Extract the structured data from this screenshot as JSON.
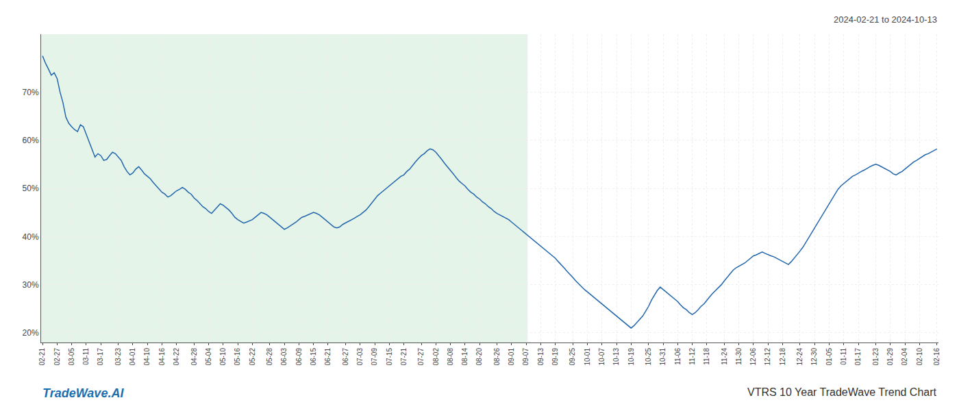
{
  "chart_data": {
    "type": "line",
    "title": "VTRS 10 Year TradeWave Trend Chart",
    "subtitle": "2024-02-21 to 2024-10-13",
    "annotations": [
      "TradeWave.AI"
    ],
    "color": "#2166ac",
    "grid": true,
    "shaded": {
      "from": 0,
      "to": 166,
      "color": "#d4edda"
    },
    "ylim": [
      0.18,
      0.82
    ],
    "yticks": [
      {
        "value": 0.2,
        "label": "20%"
      },
      {
        "value": 0.3,
        "label": "30%"
      },
      {
        "value": 0.4,
        "label": "40%"
      },
      {
        "value": 0.5,
        "label": "50%"
      },
      {
        "value": 0.6,
        "label": "60%"
      },
      {
        "value": 0.7,
        "label": "70%"
      }
    ],
    "categories": [
      "02-21",
      null,
      null,
      null,
      null,
      "02-27",
      null,
      null,
      null,
      null,
      "03-05",
      null,
      null,
      null,
      null,
      "03-11",
      null,
      null,
      null,
      null,
      "03-17",
      null,
      null,
      null,
      null,
      null,
      "03-23",
      null,
      null,
      null,
      null,
      "04-01",
      null,
      null,
      null,
      null,
      "04-10",
      null,
      null,
      null,
      null,
      "04-16",
      null,
      null,
      null,
      null,
      "04-22",
      null,
      null,
      null,
      null,
      null,
      "04-28",
      null,
      null,
      null,
      null,
      "05-04",
      null,
      null,
      null,
      null,
      "05-10",
      null,
      null,
      null,
      null,
      "05-16",
      null,
      null,
      null,
      null,
      "05-22",
      null,
      null,
      null,
      null,
      null,
      "05-28",
      null,
      null,
      null,
      null,
      "06-03",
      null,
      null,
      null,
      null,
      "06-09",
      null,
      null,
      null,
      null,
      "06-15",
      null,
      null,
      null,
      null,
      "06-21",
      null,
      null,
      null,
      null,
      null,
      "06-27",
      null,
      null,
      null,
      null,
      "07-03",
      null,
      null,
      null,
      null,
      "07-09",
      null,
      null,
      null,
      null,
      "07-15",
      null,
      null,
      null,
      null,
      "07-21",
      null,
      null,
      null,
      null,
      null,
      "07-27",
      null,
      null,
      null,
      null,
      "08-02",
      null,
      null,
      null,
      null,
      "08-08",
      null,
      null,
      null,
      null,
      "08-14",
      null,
      null,
      null,
      null,
      "08-20",
      null,
      null,
      null,
      null,
      null,
      "08-26",
      null,
      null,
      null,
      null,
      "09-01",
      null,
      null,
      null,
      null,
      "09-07",
      null,
      null,
      null,
      null,
      "09-13",
      null,
      null,
      null,
      null,
      "09-19",
      null,
      null,
      null,
      null,
      null,
      "09-25",
      null,
      null,
      null,
      null,
      "10-01",
      null,
      null,
      null,
      null,
      "10-07",
      null,
      null,
      null,
      null,
      "10-13",
      null,
      null,
      null,
      null,
      "10-19",
      null,
      null,
      null,
      null,
      null,
      "10-25",
      null,
      null,
      null,
      null,
      "10-31",
      null,
      null,
      null,
      null,
      "11-06",
      null,
      null,
      null,
      null,
      "11-12",
      null,
      null,
      null,
      null,
      "11-18",
      null,
      null,
      null,
      null,
      null,
      "11-24",
      null,
      null,
      null,
      null,
      "11-30",
      null,
      null,
      null,
      null,
      "12-06",
      null,
      null,
      null,
      null,
      "12-12",
      null,
      null,
      null,
      null,
      "12-18",
      null,
      null,
      null,
      null,
      null,
      "12-24",
      null,
      null,
      null,
      null,
      "12-30",
      null,
      null,
      null,
      null,
      "01-05",
      null,
      null,
      null,
      null,
      "01-11",
      null,
      null,
      null,
      null,
      "01-17",
      null,
      null,
      null,
      null,
      null,
      "01-23",
      null,
      null,
      null,
      null,
      "01-29",
      null,
      null,
      null,
      null,
      "02-04",
      null,
      null,
      null,
      null,
      "02-10",
      null,
      null,
      null,
      null,
      null,
      "02-16"
    ],
    "values": [
      0.775,
      0.76,
      0.748,
      0.735,
      0.74,
      0.728,
      0.7,
      0.678,
      0.648,
      0.635,
      0.628,
      0.622,
      0.618,
      0.632,
      0.628,
      0.612,
      0.598,
      0.582,
      0.565,
      0.572,
      0.568,
      0.558,
      0.56,
      0.568,
      0.575,
      0.572,
      0.565,
      0.558,
      0.545,
      0.535,
      0.528,
      0.532,
      0.54,
      0.545,
      0.538,
      0.53,
      0.525,
      0.52,
      0.512,
      0.505,
      0.498,
      0.492,
      0.488,
      0.482,
      0.485,
      0.49,
      0.495,
      0.498,
      0.502,
      0.498,
      0.492,
      0.488,
      0.48,
      0.475,
      0.468,
      0.462,
      0.458,
      0.452,
      0.448,
      0.455,
      0.462,
      0.468,
      0.465,
      0.46,
      0.455,
      0.448,
      0.44,
      0.435,
      0.432,
      0.428,
      0.43,
      0.432,
      0.435,
      0.44,
      0.445,
      0.45,
      0.448,
      0.445,
      0.44,
      0.435,
      0.43,
      0.425,
      0.42,
      0.415,
      0.418,
      0.422,
      0.425,
      0.43,
      0.435,
      0.44,
      0.442,
      0.445,
      0.448,
      0.45,
      0.448,
      0.445,
      0.44,
      0.435,
      0.43,
      0.425,
      0.42,
      0.418,
      0.42,
      0.425,
      0.428,
      0.432,
      0.435,
      0.438,
      0.442,
      0.445,
      0.45,
      0.455,
      0.462,
      0.47,
      0.478,
      0.485,
      0.49,
      0.495,
      0.5,
      0.505,
      0.51,
      0.515,
      0.52,
      0.525,
      0.528,
      0.535,
      0.54,
      0.548,
      0.555,
      0.562,
      0.568,
      0.572,
      0.578,
      0.582,
      0.58,
      0.575,
      0.568,
      0.56,
      0.552,
      0.545,
      0.538,
      0.53,
      0.522,
      0.515,
      0.51,
      0.505,
      0.498,
      0.492,
      0.488,
      0.482,
      0.478,
      0.472,
      0.468,
      0.462,
      0.458,
      0.452,
      0.448,
      0.445,
      0.442,
      0.438,
      0.435,
      0.43,
      0.425,
      0.42,
      0.415,
      0.41,
      0.405,
      0.4,
      0.395,
      0.39,
      0.385,
      0.38,
      0.375,
      0.37,
      0.365,
      0.36,
      0.355,
      0.348,
      0.342,
      0.335,
      0.328,
      0.322,
      0.315,
      0.308,
      0.302,
      0.295,
      0.29,
      0.285,
      0.28,
      0.275,
      0.27,
      0.265,
      0.26,
      0.255,
      0.25,
      0.245,
      0.24,
      0.235,
      0.23,
      0.225,
      0.22,
      0.215,
      0.21,
      0.215,
      0.222,
      0.228,
      0.235,
      0.245,
      0.255,
      0.268,
      0.278,
      0.288,
      0.295,
      0.29,
      0.285,
      0.28,
      0.275,
      0.27,
      0.265,
      0.258,
      0.252,
      0.248,
      0.242,
      0.238,
      0.242,
      0.248,
      0.255,
      0.26,
      0.268,
      0.275,
      0.282,
      0.288,
      0.295,
      0.3,
      0.308,
      0.315,
      0.322,
      0.33,
      0.335,
      0.338,
      0.342,
      0.345,
      0.35,
      0.355,
      0.36,
      0.362,
      0.365,
      0.368,
      0.365,
      0.362,
      0.36,
      0.358,
      0.355,
      0.352,
      0.348,
      0.345,
      0.342,
      0.348,
      0.355,
      0.362,
      0.37,
      0.378,
      0.388,
      0.398,
      0.408,
      0.418,
      0.428,
      0.438,
      0.448,
      0.458,
      0.468,
      0.478,
      0.488,
      0.498,
      0.505,
      0.51,
      0.515,
      0.52,
      0.525,
      0.528,
      0.532,
      0.535,
      0.538,
      0.542,
      0.545,
      0.548,
      0.55,
      0.548,
      0.545,
      0.542,
      0.538,
      0.535,
      0.53,
      0.528,
      0.532,
      0.535,
      0.54,
      0.545,
      0.55,
      0.555,
      0.558,
      0.562,
      0.565,
      0.57,
      0.572,
      0.575,
      0.578,
      0.582
    ]
  }
}
